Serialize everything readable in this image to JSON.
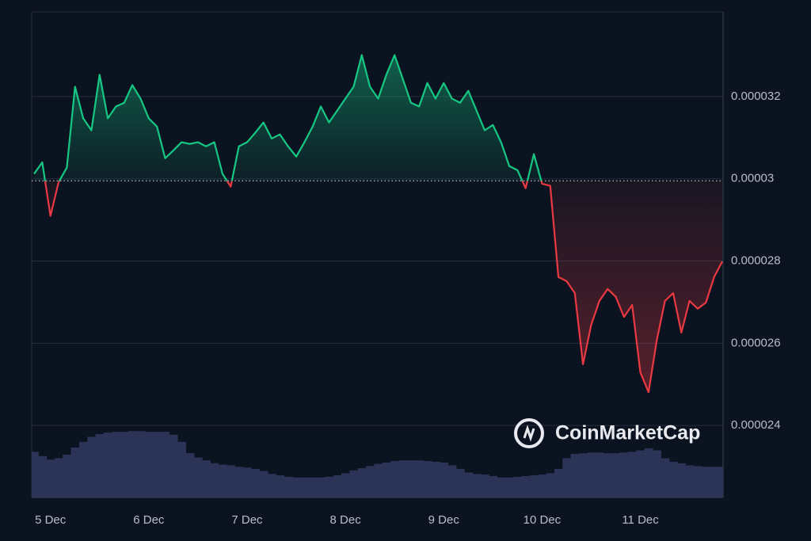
{
  "chart_data": {
    "type": "line",
    "watermark": "CoinMarketCap",
    "categories": [
      null,
      null,
      "5 Dec",
      null,
      null,
      null,
      null,
      null,
      null,
      null,
      null,
      null,
      null,
      null,
      "6 Dec",
      null,
      null,
      null,
      null,
      null,
      null,
      null,
      null,
      null,
      null,
      null,
      "7 Dec",
      null,
      null,
      null,
      null,
      null,
      null,
      null,
      null,
      null,
      null,
      null,
      "8 Dec",
      null,
      null,
      null,
      null,
      null,
      null,
      null,
      null,
      null,
      null,
      null,
      "9 Dec",
      null,
      null,
      null,
      null,
      null,
      null,
      null,
      null,
      null,
      null,
      null,
      "10 Dec",
      null,
      null,
      null,
      null,
      null,
      null,
      null,
      null,
      null,
      null,
      null,
      "11 Dec",
      null,
      null,
      null,
      null,
      null,
      null,
      null,
      null,
      null,
      null
    ],
    "series": [
      {
        "color_up": "#16c784",
        "color_down": "#ea3943",
        "values": [
          3.012e-05,
          3.04e-05,
          2.91e-05,
          2.992e-05,
          3.027e-05,
          3.224e-05,
          3.147e-05,
          3.118e-05,
          3.253e-05,
          3.147e-05,
          3.176e-05,
          3.185e-05,
          3.228e-05,
          3.195e-05,
          3.147e-05,
          3.127e-05,
          3.05e-05,
          3.069e-05,
          3.089e-05,
          3.085e-05,
          3.089e-05,
          3.079e-05,
          3.089e-05,
          3.012e-05,
          2.981e-05,
          3.079e-05,
          3.089e-05,
          3.112e-05,
          3.137e-05,
          3.098e-05,
          3.108e-05,
          3.079e-05,
          3.054e-05,
          3.089e-05,
          3.127e-05,
          3.176e-05,
          3.137e-05,
          3.166e-05,
          3.195e-05,
          3.224e-05,
          3.301e-05,
          3.224e-05,
          3.195e-05,
          3.253e-05,
          3.301e-05,
          3.243e-05,
          3.185e-05,
          3.176e-05,
          3.233e-05,
          3.195e-05,
          3.233e-05,
          3.195e-05,
          3.185e-05,
          3.214e-05,
          3.166e-05,
          3.118e-05,
          3.131e-05,
          3.089e-05,
          3.031e-05,
          3.021e-05,
          2.977e-05,
          3.06e-05,
          2.988e-05,
          2.983e-05,
          2.761e-05,
          2.751e-05,
          2.722e-05,
          2.549e-05,
          2.645e-05,
          2.703e-05,
          2.732e-05,
          2.713e-05,
          2.664e-05,
          2.693e-05,
          2.529e-05,
          2.481e-05,
          2.607e-05,
          2.703e-05,
          2.722e-05,
          2.626e-05,
          2.703e-05,
          2.684e-05,
          2.699e-05,
          2.761e-05,
          2.799e-05
        ]
      }
    ],
    "baseline": 2.995e-05,
    "ylim": [
      2.225e-05,
      3.406e-05
    ],
    "yticks": [
      2.4e-05,
      2.6e-05,
      2.8e-05,
      3e-05,
      3.2e-05
    ],
    "grid": true,
    "volume": {
      "color": "#2b3456",
      "ylim": [
        0,
        100
      ],
      "values": [
        64,
        58,
        53,
        55,
        60,
        70,
        78,
        85,
        89,
        91,
        92,
        92,
        93,
        93,
        92,
        92,
        92,
        88,
        78,
        62,
        56,
        52,
        48,
        46,
        45,
        43,
        42,
        40,
        37,
        33,
        31,
        29,
        28,
        28,
        28,
        28,
        29,
        31,
        34,
        38,
        41,
        44,
        47,
        49,
        51,
        52,
        52,
        52,
        51,
        50,
        49,
        45,
        40,
        35,
        33,
        32,
        30,
        28,
        28,
        29,
        30,
        31,
        32,
        34,
        40,
        55,
        61,
        62,
        63,
        63,
        62,
        62,
        63,
        64,
        66,
        69,
        66,
        55,
        50,
        48,
        45,
        44,
        43,
        43,
        43
      ]
    }
  }
}
